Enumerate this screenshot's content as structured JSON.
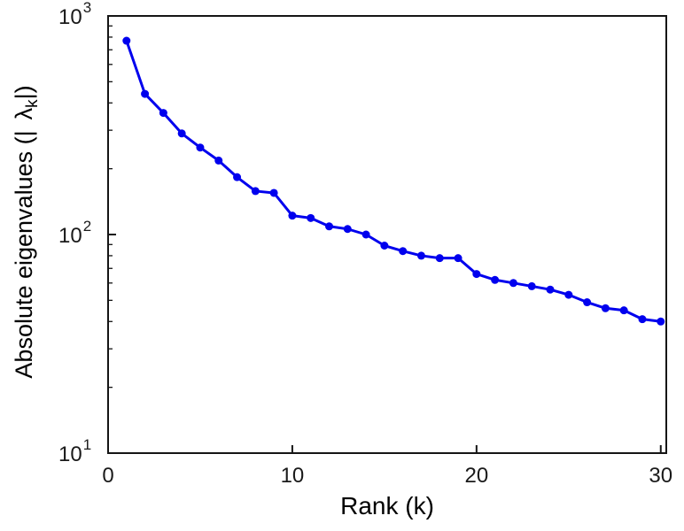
{
  "figure": {
    "background": "#ffffff",
    "xlabel": "Rank (k)",
    "ylabel": {
      "prefix": "Absolute eigenvalues (|",
      "symbol": "λ",
      "subscript": "k",
      "suffix": "|)"
    }
  },
  "chart_data": {
    "type": "line",
    "title": "",
    "xlabel": "Rank (k)",
    "ylabel": "Absolute eigenvalues (|λ_k|)",
    "x": [
      1,
      2,
      3,
      4,
      5,
      6,
      7,
      8,
      9,
      10,
      11,
      12,
      13,
      14,
      15,
      16,
      17,
      18,
      19,
      20,
      21,
      22,
      23,
      24,
      25,
      26,
      27,
      28,
      29,
      30
    ],
    "series": [
      {
        "name": "absolute-eigenvalues",
        "values": [
          770,
          440,
          360,
          290,
          250,
          218,
          183,
          158,
          155,
          122,
          119,
          109,
          106,
          100,
          89,
          84,
          80,
          78,
          78,
          66,
          62,
          60,
          58,
          56,
          53,
          49,
          46,
          45,
          41,
          40
        ]
      }
    ],
    "x_ticks": [
      0,
      10,
      20,
      30
    ],
    "y_ticks": [
      10,
      100,
      1000
    ],
    "y_tick_labels": [
      "10^1",
      "10^2",
      "10^3"
    ],
    "xlim": [
      0,
      30.3
    ],
    "ylim": [
      10,
      1000
    ],
    "y_scale": "log",
    "grid": false,
    "legend": "none",
    "line_color": "#0000ee",
    "axis_color": "#151515",
    "line_width": 3,
    "marker": "circle",
    "marker_size": 4.5
  }
}
